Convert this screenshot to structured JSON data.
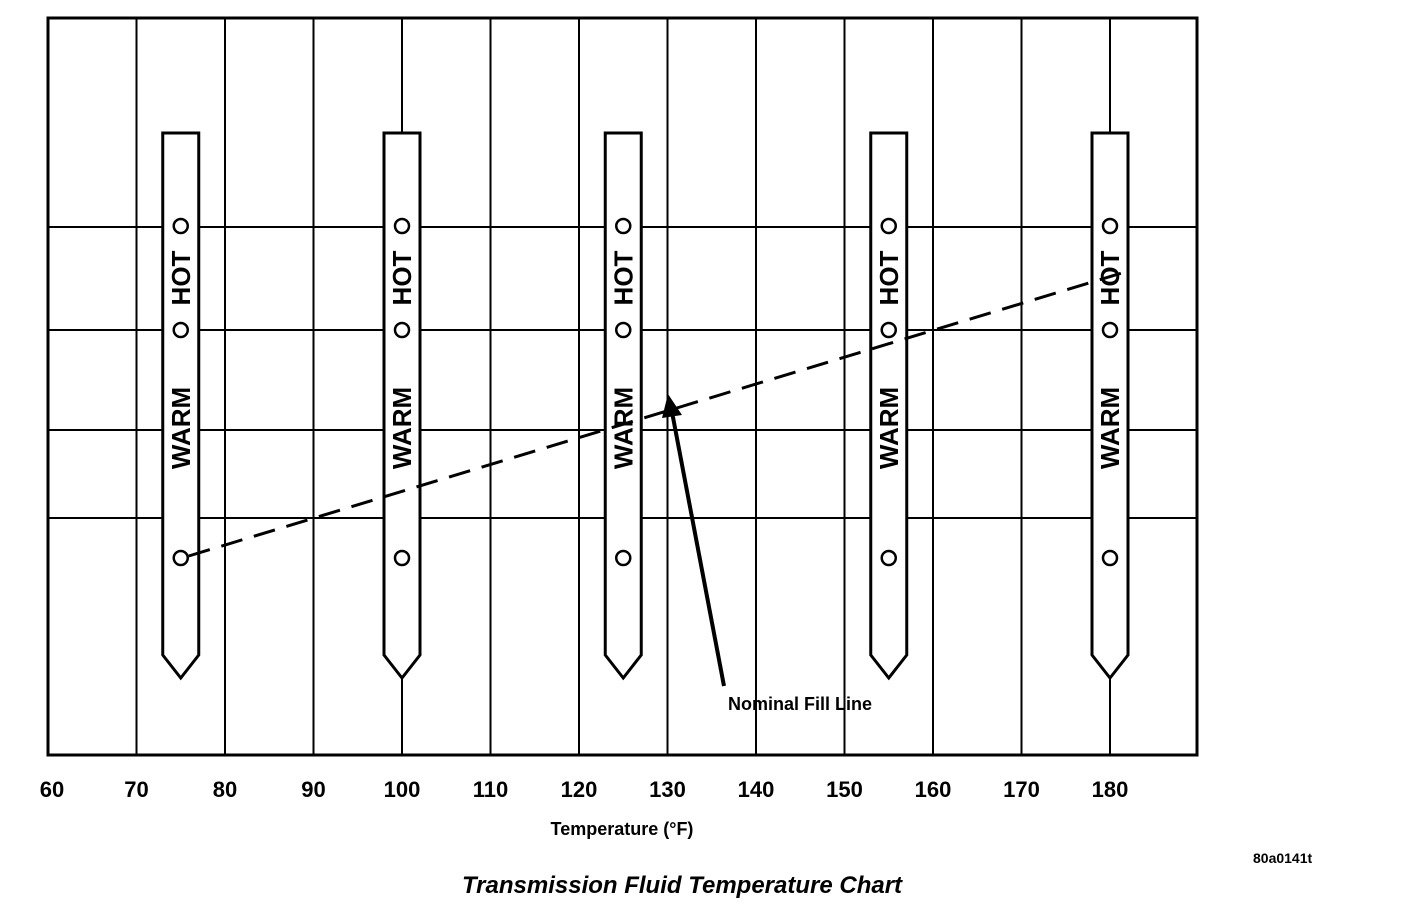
{
  "chart_data": {
    "type": "line",
    "title": "Transmission Fluid Temperature Chart",
    "xlabel": "Temperature (°F)",
    "ylabel": "",
    "x_ticks": [
      60,
      70,
      80,
      90,
      100,
      110,
      120,
      130,
      140,
      150,
      160,
      170,
      180
    ],
    "xlim": [
      60,
      190
    ],
    "grid": true,
    "dipsticks": [
      {
        "temperature": 75,
        "labels": [
          "HOT",
          "WARM"
        ]
      },
      {
        "temperature": 100,
        "labels": [
          "HOT",
          "WARM"
        ]
      },
      {
        "temperature": 125,
        "labels": [
          "HOT",
          "WARM"
        ]
      },
      {
        "temperature": 155,
        "labels": [
          "HOT",
          "WARM"
        ]
      },
      {
        "temperature": 180,
        "labels": [
          "HOT",
          "WARM"
        ]
      }
    ],
    "series": [
      {
        "x": [
          75,
          180
        ],
        "y_fraction_of_warm_band": [
          0.0,
          1.25
        ]
      }
    ],
    "annotations": [
      {
        "text": "Nominal Fill Line",
        "points_to_temperature": 130
      }
    ]
  },
  "figure_code": "80a0141t"
}
